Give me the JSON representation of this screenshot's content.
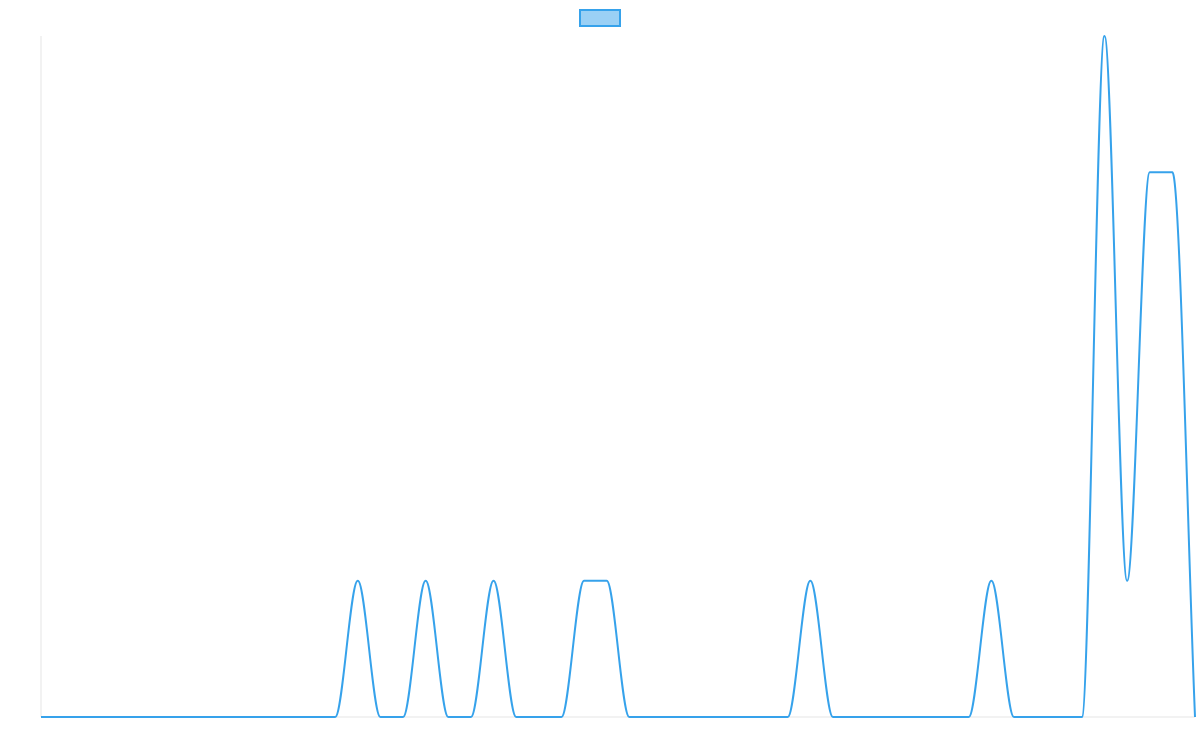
{
  "chart_data": {
    "type": "line",
    "title": "",
    "xlabel": "",
    "ylabel": "",
    "grid": false,
    "legend": {
      "position": "top-center",
      "entries": [
        ""
      ]
    },
    "xlim": [
      0,
      51
    ],
    "ylim": [
      0,
      5
    ],
    "series": [
      {
        "name": "",
        "color": "#36a2eb",
        "fill": "#9ad0f5",
        "smooth": "monotone",
        "values": [
          0,
          0,
          0,
          0,
          0,
          0,
          0,
          0,
          0,
          0,
          0,
          0,
          0,
          0,
          1,
          0,
          0,
          1,
          0,
          0,
          1,
          0,
          0,
          0,
          1,
          1,
          0,
          0,
          0,
          0,
          0,
          0,
          0,
          0,
          1,
          0,
          0,
          0,
          0,
          0,
          0,
          0,
          1,
          0,
          0,
          0,
          0,
          5,
          1,
          4,
          4,
          0
        ]
      }
    ]
  }
}
